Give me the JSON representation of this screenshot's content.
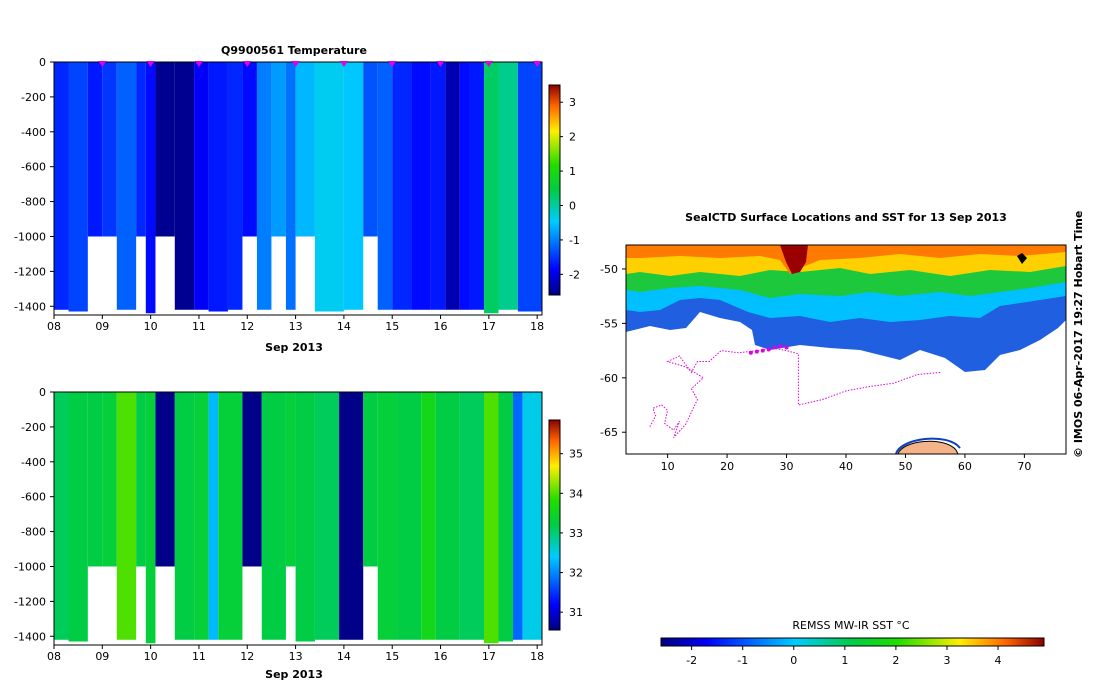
{
  "chart_data": [
    {
      "type": "heatmap",
      "title": "Q9900561  Temperature",
      "xlabel": "Sep 2013",
      "ylabel": "",
      "xlim": [
        8,
        18.1
      ],
      "ylim": [
        -1450,
        0
      ],
      "x_ticks": [
        "08",
        "09",
        "10",
        "11",
        "12",
        "13",
        "14",
        "15",
        "16",
        "17",
        "18"
      ],
      "y_ticks": [
        "0",
        "-200",
        "-400",
        "-600",
        "-800",
        "-1000",
        "-1200",
        "-1400"
      ],
      "colorbar": {
        "min": -2.6,
        "max": 3.5,
        "ticks": [
          "3",
          "2",
          "1",
          "0",
          "-1",
          "-2"
        ]
      },
      "profile_markers": [
        9,
        10,
        11,
        12,
        13,
        14,
        15,
        16,
        17,
        18
      ],
      "profiles": [
        {
          "x0": 8.0,
          "x1": 8.3,
          "bottom": -1420,
          "value": -1.6
        },
        {
          "x0": 8.3,
          "x1": 8.7,
          "bottom": -1430,
          "value": -1.4
        },
        {
          "x0": 8.7,
          "x1": 9.0,
          "bottom": -1000,
          "value": -1.7
        },
        {
          "x0": 9.0,
          "x1": 9.3,
          "bottom": -1000,
          "value": -1.5
        },
        {
          "x0": 9.3,
          "x1": 9.7,
          "bottom": -1420,
          "value": -1.2
        },
        {
          "x0": 9.7,
          "x1": 9.9,
          "bottom": -1000,
          "value": -1.6
        },
        {
          "x0": 9.9,
          "x1": 10.1,
          "bottom": -1440,
          "value": -1.8
        },
        {
          "x0": 10.1,
          "x1": 10.5,
          "bottom": -1000,
          "value": -2.5
        },
        {
          "x0": 10.5,
          "x1": 10.9,
          "bottom": -1420,
          "value": -2.5
        },
        {
          "x0": 10.9,
          "x1": 11.2,
          "bottom": -1420,
          "value": -1.9
        },
        {
          "x0": 11.2,
          "x1": 11.6,
          "bottom": -1430,
          "value": -1.7
        },
        {
          "x0": 11.6,
          "x1": 11.9,
          "bottom": -1420,
          "value": -1.6
        },
        {
          "x0": 11.9,
          "x1": 12.2,
          "bottom": -1000,
          "value": -1.8
        },
        {
          "x0": 12.2,
          "x1": 12.5,
          "bottom": -1420,
          "value": -1.0
        },
        {
          "x0": 12.5,
          "x1": 12.8,
          "bottom": -1000,
          "value": -0.8
        },
        {
          "x0": 12.8,
          "x1": 13.0,
          "bottom": -1420,
          "value": -1.1
        },
        {
          "x0": 13.0,
          "x1": 13.4,
          "bottom": -1000,
          "value": -0.6
        },
        {
          "x0": 13.4,
          "x1": 14.0,
          "bottom": -1430,
          "value": -0.4
        },
        {
          "x0": 14.0,
          "x1": 14.4,
          "bottom": -1420,
          "value": -0.5
        },
        {
          "x0": 14.4,
          "x1": 14.7,
          "bottom": -1000,
          "value": -1.3
        },
        {
          "x0": 14.7,
          "x1": 15.0,
          "bottom": -1420,
          "value": -1.2
        },
        {
          "x0": 15.0,
          "x1": 15.4,
          "bottom": -1420,
          "value": -1.6
        },
        {
          "x0": 15.4,
          "x1": 15.8,
          "bottom": -1420,
          "value": -1.8
        },
        {
          "x0": 15.8,
          "x1": 16.1,
          "bottom": -1420,
          "value": -1.7
        },
        {
          "x0": 16.1,
          "x1": 16.4,
          "bottom": -1420,
          "value": -2.3
        },
        {
          "x0": 16.4,
          "x1": 16.6,
          "bottom": -1420,
          "value": -1.8
        },
        {
          "x0": 16.6,
          "x1": 16.9,
          "bottom": -1420,
          "value": -1.7
        },
        {
          "x0": 16.9,
          "x1": 17.2,
          "bottom": -1440,
          "value": 0.3
        },
        {
          "x0": 17.2,
          "x1": 17.6,
          "bottom": -1420,
          "value": 0.1
        },
        {
          "x0": 17.6,
          "x1": 18.1,
          "bottom": -1430,
          "value": -1.4
        }
      ]
    },
    {
      "type": "heatmap",
      "title": "",
      "xlabel": "Sep 2013",
      "ylabel": "",
      "xlim": [
        8,
        18.1
      ],
      "ylim": [
        -1450,
        0
      ],
      "x_ticks": [
        "08",
        "09",
        "10",
        "11",
        "12",
        "13",
        "14",
        "15",
        "16",
        "17",
        "18"
      ],
      "y_ticks": [
        "0",
        "-200",
        "-400",
        "-600",
        "-800",
        "-1000",
        "-1200",
        "-1400"
      ],
      "colorbar": {
        "min": 30.55,
        "max": 35.85,
        "ticks": [
          "35",
          "34",
          "33",
          "32",
          "31"
        ]
      },
      "profiles": [
        {
          "x0": 8.0,
          "x1": 8.3,
          "bottom": -1420,
          "value": 33.1
        },
        {
          "x0": 8.3,
          "x1": 8.7,
          "bottom": -1430,
          "value": 33.2
        },
        {
          "x0": 8.7,
          "x1": 9.0,
          "bottom": -1000,
          "value": 33.2
        },
        {
          "x0": 9.0,
          "x1": 9.3,
          "bottom": -1000,
          "value": 33.3
        },
        {
          "x0": 9.3,
          "x1": 9.7,
          "bottom": -1420,
          "value": 34.0
        },
        {
          "x0": 9.7,
          "x1": 9.9,
          "bottom": -1000,
          "value": 33.2
        },
        {
          "x0": 9.9,
          "x1": 10.1,
          "bottom": -1440,
          "value": 33.3
        },
        {
          "x0": 10.1,
          "x1": 10.5,
          "bottom": -1000,
          "value": 30.6
        },
        {
          "x0": 10.5,
          "x1": 10.9,
          "bottom": -1420,
          "value": 33.2
        },
        {
          "x0": 10.9,
          "x1": 11.2,
          "bottom": -1420,
          "value": 33.3
        },
        {
          "x0": 11.2,
          "x1": 11.4,
          "bottom": -1420,
          "value": 32.3
        },
        {
          "x0": 11.4,
          "x1": 11.9,
          "bottom": -1420,
          "value": 33.3
        },
        {
          "x0": 11.9,
          "x1": 12.3,
          "bottom": -1000,
          "value": 30.6
        },
        {
          "x0": 12.3,
          "x1": 12.8,
          "bottom": -1420,
          "value": 33.2
        },
        {
          "x0": 12.8,
          "x1": 13.0,
          "bottom": -1000,
          "value": 33.3
        },
        {
          "x0": 13.0,
          "x1": 13.4,
          "bottom": -1430,
          "value": 33.2
        },
        {
          "x0": 13.4,
          "x1": 13.9,
          "bottom": -1420,
          "value": 33.1
        },
        {
          "x0": 13.9,
          "x1": 14.4,
          "bottom": -1420,
          "value": 30.6
        },
        {
          "x0": 14.4,
          "x1": 14.7,
          "bottom": -1000,
          "value": 33.2
        },
        {
          "x0": 14.7,
          "x1": 15.1,
          "bottom": -1420,
          "value": 33.3
        },
        {
          "x0": 15.1,
          "x1": 15.6,
          "bottom": -1420,
          "value": 33.2
        },
        {
          "x0": 15.6,
          "x1": 15.9,
          "bottom": -1420,
          "value": 33.6
        },
        {
          "x0": 15.9,
          "x1": 16.4,
          "bottom": -1420,
          "value": 33.2
        },
        {
          "x0": 16.4,
          "x1": 16.9,
          "bottom": -1420,
          "value": 33.1
        },
        {
          "x0": 16.9,
          "x1": 17.2,
          "bottom": -1440,
          "value": 34.0
        },
        {
          "x0": 17.2,
          "x1": 17.5,
          "bottom": -1430,
          "value": 33.2
        },
        {
          "x0": 17.5,
          "x1": 17.7,
          "bottom": -1420,
          "value": 31.8
        },
        {
          "x0": 17.7,
          "x1": 18.1,
          "bottom": -1420,
          "value": 32.5
        }
      ]
    },
    {
      "type": "map",
      "title": "SealCTD Surface Locations and SST for 13 Sep 2013",
      "xlim": [
        3,
        77
      ],
      "ylim": [
        -67,
        -47.8
      ],
      "x_ticks": [
        "10",
        "20",
        "30",
        "40",
        "50",
        "60",
        "70"
      ],
      "y_ticks": [
        "-50",
        "-55",
        "-60",
        "-65"
      ],
      "colorbar": {
        "label": "REMSS MW-IR SST °C",
        "min": -2.6,
        "max": 4.9,
        "ticks": [
          "-2",
          "-1",
          "0",
          "1",
          "2",
          "3",
          "4"
        ]
      },
      "watermark": "© IMOS 06-Apr-2017 19:27 Hobart Time",
      "track": [
        [
          7,
          -64.5
        ],
        [
          8,
          -63.5
        ],
        [
          7.5,
          -62.8
        ],
        [
          9,
          -62.5
        ],
        [
          10,
          -63
        ],
        [
          9.5,
          -64.2
        ],
        [
          11,
          -64.8
        ],
        [
          12,
          -64
        ],
        [
          11,
          -65.5
        ],
        [
          13,
          -64.3
        ],
        [
          15,
          -62
        ],
        [
          14,
          -61
        ],
        [
          16,
          -60
        ],
        [
          13,
          -59
        ],
        [
          10,
          -58.5
        ],
        [
          12,
          -58
        ],
        [
          14,
          -59.5
        ],
        [
          15,
          -58.5
        ],
        [
          17,
          -58.5
        ],
        [
          19,
          -57.5
        ],
        [
          22,
          -57.7
        ],
        [
          25,
          -57.5
        ],
        [
          28,
          -57.3
        ],
        [
          30,
          -57.5
        ],
        [
          32,
          -57.8
        ],
        [
          32,
          -62.5
        ],
        [
          36,
          -62
        ],
        [
          40,
          -61.2
        ],
        [
          44,
          -60.8
        ],
        [
          48,
          -60.5
        ],
        [
          52,
          -59.7
        ],
        [
          56,
          -59.5
        ]
      ],
      "recent_positions": [
        [
          24,
          -57.7
        ],
        [
          25,
          -57.6
        ],
        [
          26,
          -57.5
        ],
        [
          27,
          -57.4
        ],
        [
          28,
          -57.2
        ],
        [
          29,
          -57.1
        ],
        [
          30,
          -57.2
        ]
      ]
    }
  ]
}
